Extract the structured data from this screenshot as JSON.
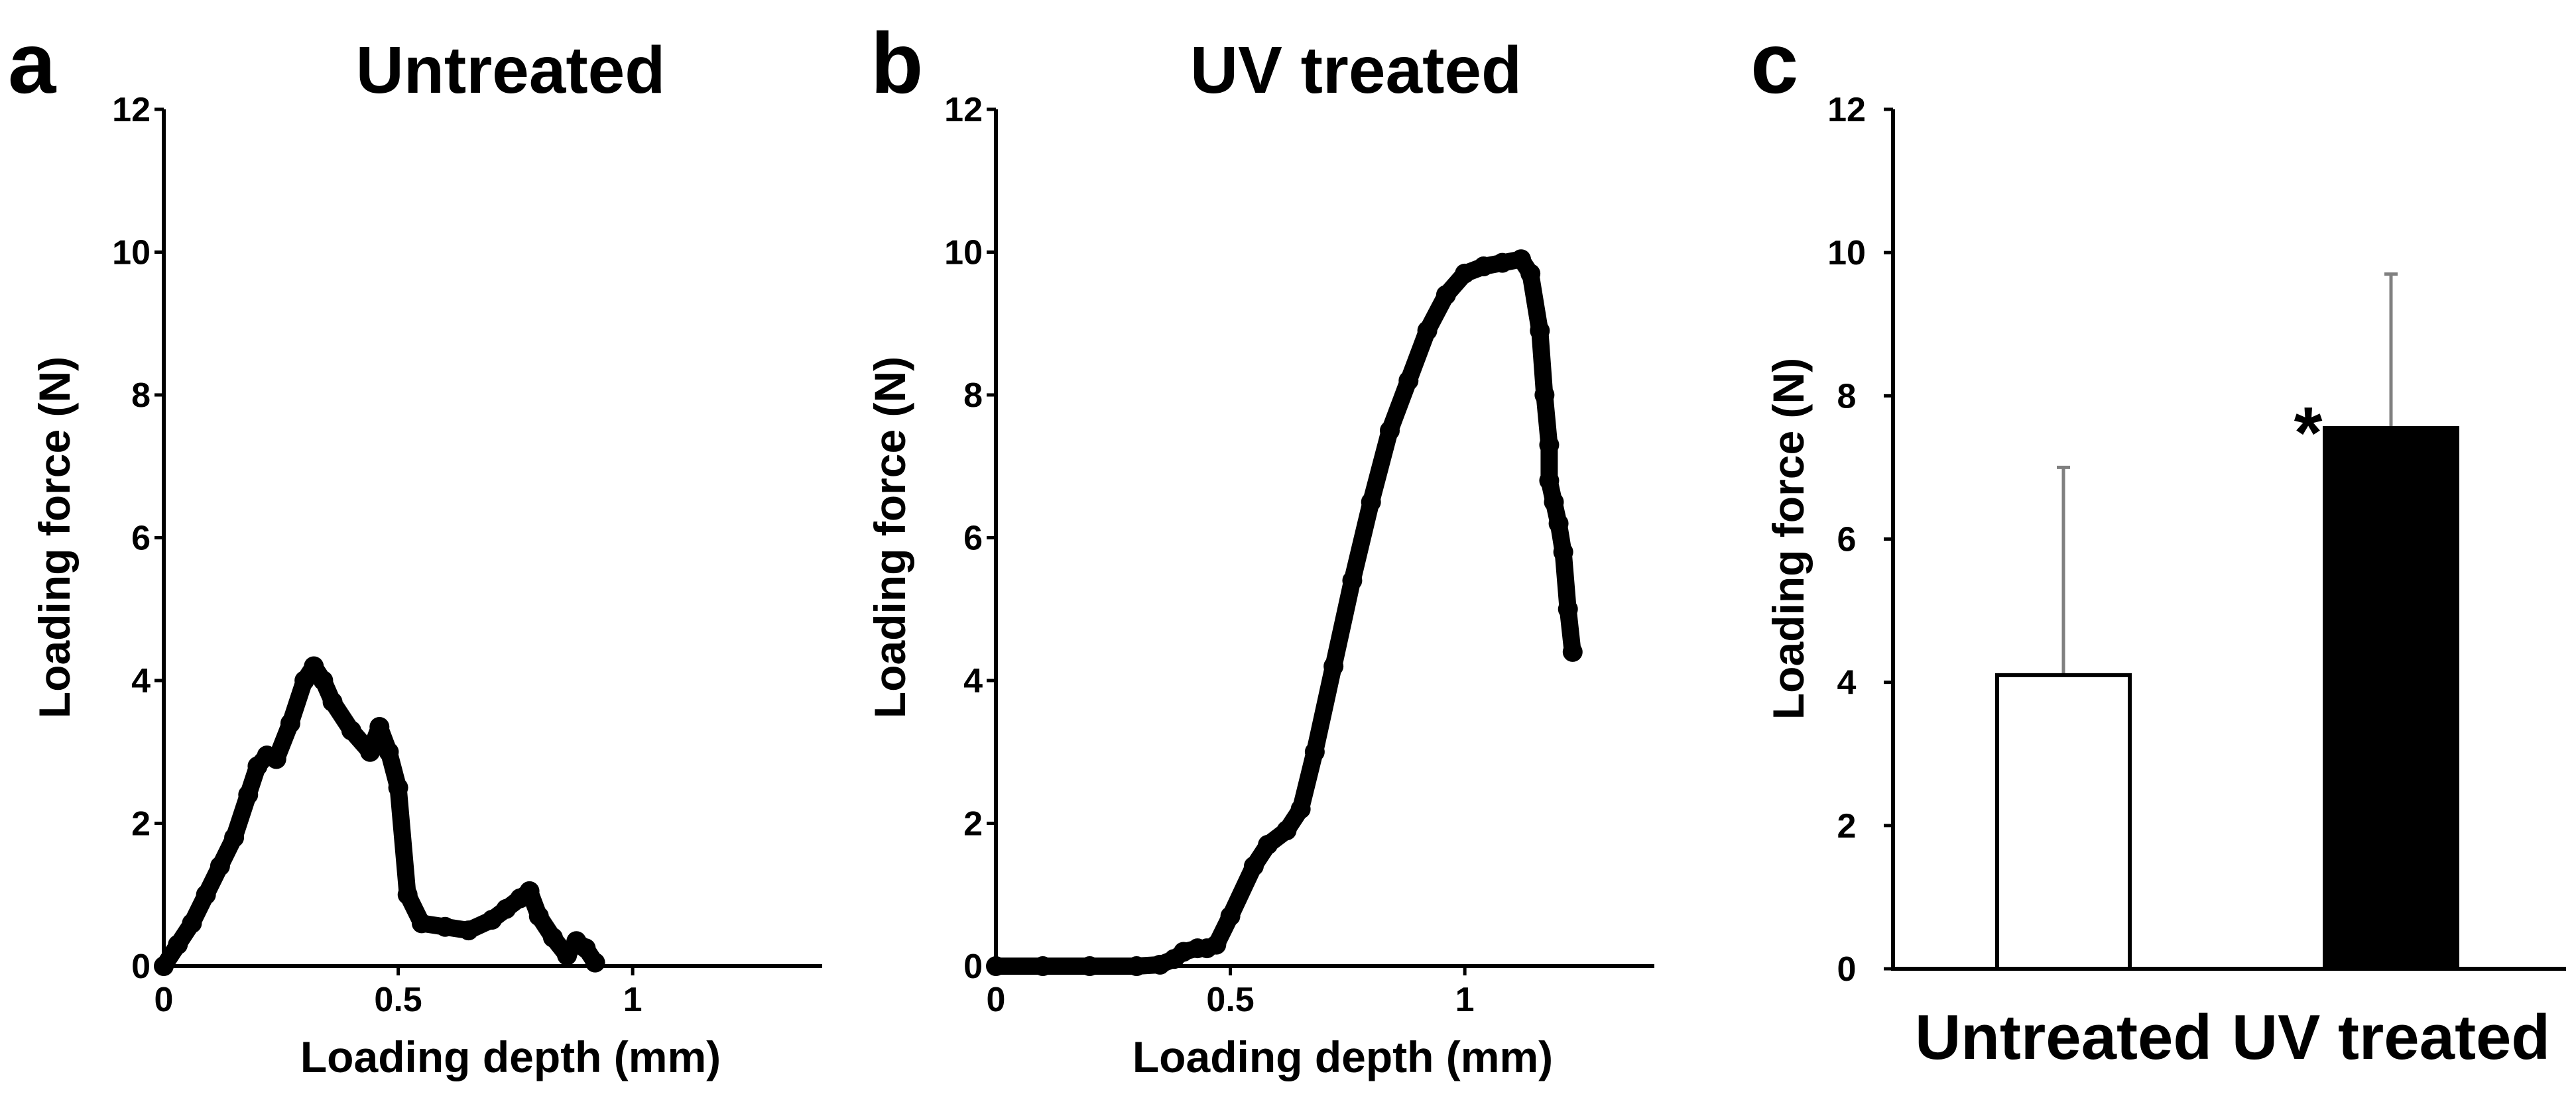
{
  "chart_data": [
    {
      "panel": "a",
      "type": "scatter",
      "title": "Untreated",
      "xlabel": "Loading depth (mm)",
      "ylabel": "Loading force (N)",
      "xlim": [
        0,
        1.4
      ],
      "ylim": [
        0,
        12
      ],
      "xticks": [
        0,
        0.5,
        1
      ],
      "xtick_labels": [
        "0",
        "0.5",
        "1"
      ],
      "yticks": [
        0,
        2,
        4,
        6,
        8,
        10,
        12
      ],
      "ytick_labels": [
        "0",
        "2",
        "4",
        "6",
        "8",
        "10",
        "12"
      ],
      "series": [
        {
          "name": "Untreated",
          "x": [
            0.0,
            0.03,
            0.06,
            0.09,
            0.12,
            0.15,
            0.18,
            0.2,
            0.22,
            0.24,
            0.27,
            0.3,
            0.32,
            0.34,
            0.36,
            0.4,
            0.44,
            0.46,
            0.48,
            0.5,
            0.52,
            0.55,
            0.6,
            0.65,
            0.7,
            0.73,
            0.76,
            0.78,
            0.8,
            0.83,
            0.86,
            0.88,
            0.9,
            0.92
          ],
          "y": [
            0.0,
            0.3,
            0.6,
            1.0,
            1.4,
            1.8,
            2.4,
            2.8,
            2.95,
            2.9,
            3.4,
            4.0,
            4.2,
            4.0,
            3.7,
            3.3,
            3.0,
            3.35,
            3.0,
            2.5,
            1.0,
            0.6,
            0.55,
            0.5,
            0.65,
            0.8,
            0.95,
            1.05,
            0.7,
            0.4,
            0.15,
            0.35,
            0.25,
            0.05
          ]
        }
      ]
    },
    {
      "panel": "b",
      "type": "scatter",
      "title": "UV treated",
      "xlabel": "Loading depth (mm)",
      "ylabel": "Loading force (N)",
      "xlim": [
        0,
        1.4
      ],
      "ylim": [
        0,
        12
      ],
      "xticks": [
        0,
        0.5,
        1
      ],
      "xtick_labels": [
        "0",
        "0.5",
        "1"
      ],
      "yticks": [
        0,
        2,
        4,
        6,
        8,
        10,
        12
      ],
      "ytick_labels": [
        "0",
        "2",
        "4",
        "6",
        "8",
        "10",
        "12"
      ],
      "series": [
        {
          "name": "UV treated",
          "x": [
            0.0,
            0.1,
            0.2,
            0.3,
            0.35,
            0.38,
            0.4,
            0.43,
            0.45,
            0.47,
            0.5,
            0.55,
            0.58,
            0.62,
            0.65,
            0.68,
            0.72,
            0.76,
            0.8,
            0.84,
            0.88,
            0.92,
            0.96,
            1.0,
            1.04,
            1.08,
            1.12,
            1.14,
            1.16,
            1.17,
            1.18,
            1.18,
            1.19,
            1.2,
            1.21,
            1.22,
            1.23
          ],
          "y": [
            0.0,
            0.0,
            0.0,
            0.0,
            0.02,
            0.1,
            0.2,
            0.25,
            0.25,
            0.3,
            0.7,
            1.4,
            1.7,
            1.9,
            2.2,
            3.0,
            4.2,
            5.4,
            6.5,
            7.5,
            8.2,
            8.9,
            9.4,
            9.7,
            9.8,
            9.85,
            9.9,
            9.7,
            8.9,
            8.0,
            7.3,
            6.8,
            6.5,
            6.2,
            5.8,
            5.0,
            4.4
          ]
        }
      ]
    },
    {
      "panel": "c",
      "type": "bar",
      "ylabel": "Loading force (N)",
      "ylim": [
        0,
        12
      ],
      "yticks": [
        0,
        2,
        4,
        6,
        8,
        10,
        12
      ],
      "ytick_labels": [
        "0",
        "2",
        "4",
        "6",
        "8",
        "10",
        "12"
      ],
      "categories": [
        "Untreated",
        "UV treated"
      ],
      "values": [
        4.1,
        7.55
      ],
      "errors": [
        2.9,
        2.15
      ],
      "bar_colors": [
        "#ffffff",
        "#000000"
      ],
      "annotations": [
        {
          "category": "UV treated",
          "text": "*"
        }
      ]
    }
  ]
}
